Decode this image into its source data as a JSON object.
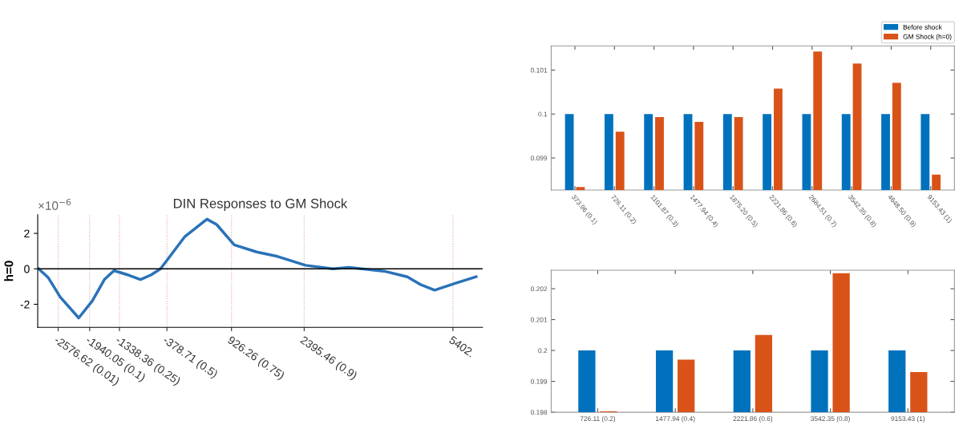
{
  "chart_data": [
    {
      "type": "line",
      "title": "DIN Responses to GM Shock",
      "ylabel": "h=0",
      "annotations": [
        "×10$^{−6}$",
        "(0.01)",
        "(0.1)",
        "(0.25)",
        "(0.5)",
        "(0.75)",
        "(0.9)"
      ],
      "series": [
        {
          "color": "#2a72b8",
          "x": [
            -2971,
            -2776,
            -2533,
            -2161,
            -1885,
            -1642,
            -1448,
            -1156,
            -913,
            -703,
            -508,
            -22,
            431,
            626,
            982,
            1436,
            1857,
            2424,
            2975,
            3299,
            4044,
            4481,
            4757,
            5032,
            5470,
            5870
          ],
          "values": [
            0,
            -0.5,
            -1.6,
            -2.77,
            -1.8,
            -0.6,
            -0.1,
            -0.35,
            -0.6,
            -0.35,
            0,
            1.8,
            2.8,
            2.5,
            1.35,
            0.95,
            0.7,
            0.2,
            0,
            0.08,
            -0.15,
            -0.45,
            -0.9,
            -1.2,
            -0.8,
            -0.45
          ]
        }
      ],
      "xlim": [
        -2990,
        6000
      ],
      "xticks": [
        -2576.62,
        -1940.05,
        -1338.36,
        -378.71,
        926.26,
        2395.46,
        {
          "value": 5402,
          "label": "5402."
        }
      ],
      "ylim": [
        -3.3,
        3.05
      ],
      "yticks": [
        -2,
        0,
        2
      ],
      "grid": "x",
      "ref_lines": [
        {
          "axis": "y",
          "value": 0,
          "color": "#000000"
        }
      ],
      "marker": "none",
      "line_style": "solid",
      "legend": false
    },
    {
      "type": "bar",
      "categories": [
        "373.96 (0.1)",
        "726.11 (0.2)",
        "1101.87 (0.3)",
        "1477.94 (0.4)",
        "1875.20 (0.5)",
        "2221.86 (0.6)",
        "2684.51 (0.7)",
        "3542.35 (0.8)",
        "4648.50 (0.9)",
        "9153.43 (1)"
      ],
      "series": [
        {
          "name": "Before shock",
          "color": "#0072bd",
          "values": [
            0.1,
            0.1,
            0.1,
            0.1,
            0.1,
            0.1,
            0.1,
            0.1,
            0.1,
            0.1
          ]
        },
        {
          "name": "GM Shock (h=0)",
          "color": "#d95319",
          "values": [
            0.09834,
            0.0996,
            0.09993,
            0.09982,
            0.09993,
            0.10058,
            0.10142,
            0.10115,
            0.10071,
            0.09862
          ]
        }
      ],
      "ylim": [
        0.09827,
        0.10155
      ],
      "yticks": [
        0.099,
        0.1,
        0.101
      ],
      "legend": "top right",
      "grid": false
    },
    {
      "type": "bar",
      "categories": [
        "726.11 (0.2)",
        "1477.94 (0.4)",
        "2221.86 (0.6)",
        "3542.35 (0.8)",
        "9153.43 (1)"
      ],
      "series": [
        {
          "color": "#0072bd",
          "values": [
            0.2,
            0.2,
            0.2,
            0.2,
            0.2
          ]
        },
        {
          "color": "#d95319",
          "values": [
            0.19803,
            0.1997,
            0.2005,
            0.2025,
            0.1993
          ]
        }
      ],
      "ylim": [
        0.198,
        0.2026
      ],
      "yticks": [
        0.198,
        0.199,
        0.2,
        0.201,
        0.202
      ],
      "legend": false,
      "grid": false
    }
  ]
}
